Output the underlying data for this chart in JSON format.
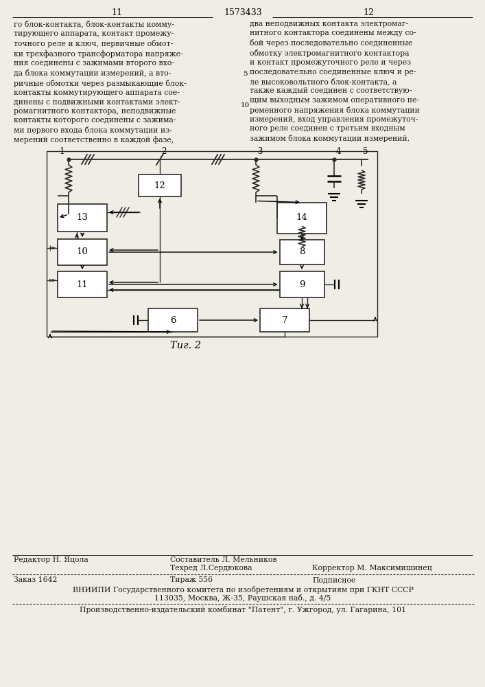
{
  "page_color": "#f0ede6",
  "text_color": "#1a1a1a",
  "line_color": "#2a2a2a",
  "title_page_num_left": "11",
  "title_patent": "1573433",
  "title_page_num_right": "12",
  "top_text_left": "го блок-контакта, блок-контакты комму-\nтирующего аппарата, контакт промежу-\nточного реле и ключ, первичные обмот-\nки трехфазного трансформатора напряже-\nния соединены с зажимами второго вхо-\nда блока коммутации измерений, а вто-\nричные обмотки через размыкающие блок-\nконтакты коммутирующего аппарата сое-\nдинены с подвижными контактами элект-\nромагнитного контактора, неподвижные\nконтакты которого соединены с зажима-\nми первого входа блока коммутации из-\nмерений соответственно в каждой фазе,",
  "top_text_right": "два неподвижных контакта электромаг-\nнитного контактора соединены между со-\nбой через последовательно соединенные\nобмотку электромагнитного контактора\nи контакт промежуточного реле и через\nпоследовательно соединенные ключ и ре-\nле высоковольтного блок-контакта, а\nтакже каждый соединен с соответствую-\nщим выходным зажимом оперативного пе-\nременного напряжения блока коммутации\nизмерений, вход управления промежуточ-\nного реле соединен с третьим входным\nзажимом блока коммутации измерений.",
  "fig_caption": "Τиг. 2",
  "bottom_left_label": "Редактор Н. Яцола",
  "bottom_center_top": "Составитель Л. Мельников",
  "bottom_center_mid": "Техред Л.Сердюкова",
  "bottom_center_right": "Корректор М. Максимишинец",
  "bottom_order": "Заказ 1642",
  "bottom_circulation": "Тираж 556",
  "bottom_subscription": "Подписное",
  "bottom_vniiphi": "ВНИИПИ Государственного комитета по изобретениям и открытиям при ГКНТ СССР",
  "bottom_address": "113035, Москва, Ж-35, Раушская наб., д. 4/5",
  "bottom_publisher": "Производственно-издательский комбинат \"Патент\", г. Ужгород, ул. Гагарина, 101"
}
